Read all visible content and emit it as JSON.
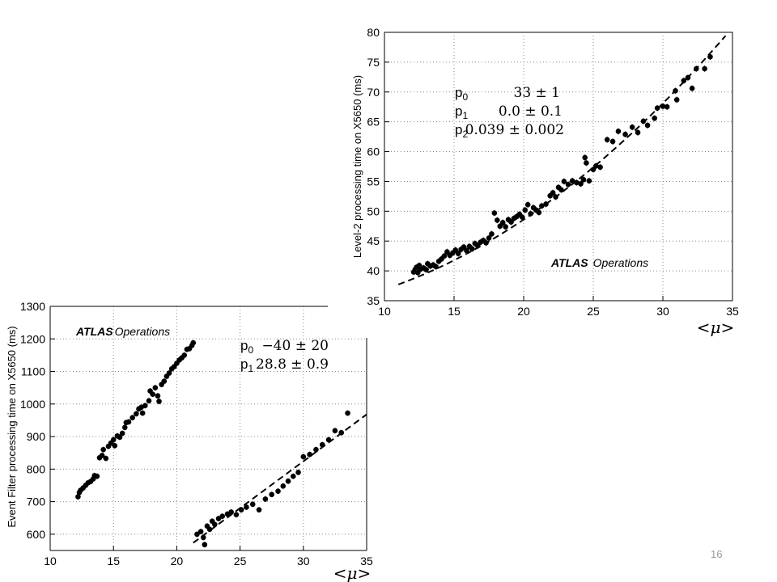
{
  "page_number": "16",
  "chart_data": [
    {
      "type": "scatter",
      "id": "l2",
      "xlabel": "<μ>",
      "ylabel": "Level-2 processing time on X5650 (ms)",
      "xlim": [
        10,
        35
      ],
      "ylim": [
        35,
        80
      ],
      "xticks": [
        10,
        15,
        20,
        25,
        30,
        35
      ],
      "yticks": [
        35,
        40,
        45,
        50,
        55,
        60,
        65,
        70,
        75,
        80
      ],
      "grid": true,
      "brand": "ATLAS",
      "brand_suffix": "Operations",
      "params": [
        {
          "name": "p",
          "sub": "0",
          "value": "33 ± 1"
        },
        {
          "name": "p",
          "sub": "1",
          "value": "0.0 ± 0.1"
        },
        {
          "name": "p",
          "sub": "2",
          "value": "0.039 ± 0.002"
        }
      ],
      "fit": {
        "type": "quadratic",
        "coeffs": [
          33,
          0.0,
          0.039
        ],
        "xrange": [
          11,
          34.5
        ]
      },
      "points": [
        [
          12.1,
          39.8
        ],
        [
          12.2,
          40.2
        ],
        [
          12.3,
          40.6
        ],
        [
          12.4,
          39.7
        ],
        [
          12.5,
          40.9
        ],
        [
          12.6,
          40.3
        ],
        [
          12.8,
          40.5
        ],
        [
          13.0,
          40.2
        ],
        [
          13.1,
          41.2
        ],
        [
          13.3,
          40.8
        ],
        [
          13.5,
          41.0
        ],
        [
          13.7,
          40.7
        ],
        [
          13.9,
          41.6
        ],
        [
          14.1,
          42.0
        ],
        [
          14.3,
          42.5
        ],
        [
          14.5,
          43.2
        ],
        [
          14.7,
          42.6
        ],
        [
          14.9,
          43.0
        ],
        [
          15.1,
          43.5
        ],
        [
          15.3,
          42.9
        ],
        [
          15.5,
          43.6
        ],
        [
          15.7,
          44.0
        ],
        [
          15.9,
          43.4
        ],
        [
          16.1,
          44.1
        ],
        [
          16.3,
          43.7
        ],
        [
          16.5,
          44.6
        ],
        [
          16.7,
          44.2
        ],
        [
          16.9,
          44.8
        ],
        [
          17.1,
          45.1
        ],
        [
          17.3,
          44.7
        ],
        [
          17.5,
          45.5
        ],
        [
          17.7,
          46.2
        ],
        [
          17.9,
          49.7
        ],
        [
          18.1,
          48.5
        ],
        [
          18.3,
          47.5
        ],
        [
          18.5,
          48.1
        ],
        [
          18.7,
          47.4
        ],
        [
          18.9,
          48.6
        ],
        [
          19.1,
          48.2
        ],
        [
          19.3,
          48.8
        ],
        [
          19.5,
          49.1
        ],
        [
          19.7,
          49.5
        ],
        [
          19.9,
          49.0
        ],
        [
          20.1,
          50.2
        ],
        [
          20.3,
          51.1
        ],
        [
          20.5,
          49.6
        ],
        [
          20.7,
          50.6
        ],
        [
          20.9,
          50.2
        ],
        [
          21.1,
          49.8
        ],
        [
          21.3,
          50.9
        ],
        [
          21.6,
          51.2
        ],
        [
          21.9,
          52.6
        ],
        [
          22.1,
          53.1
        ],
        [
          22.3,
          52.4
        ],
        [
          22.5,
          54.0
        ],
        [
          22.7,
          53.6
        ],
        [
          22.9,
          55.0
        ],
        [
          23.2,
          54.5
        ],
        [
          23.5,
          55.1
        ],
        [
          23.8,
          54.8
        ],
        [
          24.1,
          54.6
        ],
        [
          24.3,
          55.3
        ],
        [
          24.4,
          59.0
        ],
        [
          24.5,
          58.1
        ],
        [
          24.7,
          55.1
        ],
        [
          25.0,
          57.0
        ],
        [
          25.2,
          57.6
        ],
        [
          25.5,
          57.4
        ],
        [
          26.0,
          62.0
        ],
        [
          26.4,
          61.7
        ],
        [
          26.8,
          63.4
        ],
        [
          27.3,
          62.9
        ],
        [
          27.8,
          64.1
        ],
        [
          28.2,
          63.2
        ],
        [
          28.6,
          65.1
        ],
        [
          28.9,
          64.4
        ],
        [
          29.4,
          65.6
        ],
        [
          29.6,
          67.3
        ],
        [
          30.0,
          67.6
        ],
        [
          30.3,
          67.5
        ],
        [
          30.9,
          70.2
        ],
        [
          31.0,
          68.7
        ],
        [
          31.5,
          71.9
        ],
        [
          31.8,
          72.4
        ],
        [
          32.1,
          70.6
        ],
        [
          32.4,
          73.9
        ],
        [
          33.0,
          73.9
        ],
        [
          33.4,
          75.9
        ]
      ]
    },
    {
      "type": "scatter",
      "id": "ef",
      "xlabel": "<μ>",
      "ylabel": "Event Filter processing time on X5650 (ms)",
      "xlim": [
        10,
        35
      ],
      "ylim": [
        550,
        1300
      ],
      "xticks": [
        10,
        15,
        20,
        25,
        30,
        35
      ],
      "yticks": [
        600,
        700,
        800,
        900,
        1000,
        1100,
        1200,
        1300
      ],
      "grid": true,
      "brand": "ATLAS",
      "brand_suffix": "Operations",
      "params": [
        {
          "name": "p",
          "sub": "0",
          "value": "−40 ± 20"
        },
        {
          "name": "p",
          "sub": "1",
          "value": "28.8 ± 0.9"
        }
      ],
      "fit": {
        "type": "linear",
        "coeffs": [
          -40,
          28.8
        ],
        "xrange": [
          21.3,
          35
        ]
      },
      "points": [
        [
          12.2,
          715
        ],
        [
          12.3,
          728
        ],
        [
          12.4,
          735
        ],
        [
          12.6,
          742
        ],
        [
          12.8,
          750
        ],
        [
          13.0,
          758
        ],
        [
          13.2,
          762
        ],
        [
          13.4,
          770
        ],
        [
          13.5,
          780
        ],
        [
          13.7,
          778
        ],
        [
          13.9,
          835
        ],
        [
          14.1,
          842
        ],
        [
          14.2,
          860
        ],
        [
          14.4,
          833
        ],
        [
          14.6,
          870
        ],
        [
          14.8,
          880
        ],
        [
          15.0,
          890
        ],
        [
          15.1,
          872
        ],
        [
          15.3,
          902
        ],
        [
          15.5,
          898
        ],
        [
          15.7,
          910
        ],
        [
          15.9,
          928
        ],
        [
          16.0,
          943
        ],
        [
          16.2,
          945
        ],
        [
          16.5,
          958
        ],
        [
          16.8,
          970
        ],
        [
          17.0,
          985
        ],
        [
          17.2,
          990
        ],
        [
          17.3,
          972
        ],
        [
          17.5,
          995
        ],
        [
          17.8,
          1010
        ],
        [
          17.9,
          1040
        ],
        [
          18.1,
          1030
        ],
        [
          18.3,
          1050
        ],
        [
          18.5,
          1025
        ],
        [
          18.6,
          1008
        ],
        [
          18.8,
          1060
        ],
        [
          19.0,
          1070
        ],
        [
          19.2,
          1085
        ],
        [
          19.4,
          1095
        ],
        [
          19.6,
          1108
        ],
        [
          19.8,
          1115
        ],
        [
          20.0,
          1125
        ],
        [
          20.2,
          1135
        ],
        [
          20.4,
          1142
        ],
        [
          20.6,
          1150
        ],
        [
          20.8,
          1168
        ],
        [
          21.0,
          1170
        ],
        [
          21.2,
          1180
        ],
        [
          21.3,
          1188
        ],
        [
          21.6,
          600
        ],
        [
          21.9,
          608
        ],
        [
          22.1,
          590
        ],
        [
          22.2,
          568
        ],
        [
          22.4,
          625
        ],
        [
          22.6,
          615
        ],
        [
          22.8,
          640
        ],
        [
          23.0,
          630
        ],
        [
          23.3,
          648
        ],
        [
          23.6,
          655
        ],
        [
          24.0,
          662
        ],
        [
          24.3,
          668
        ],
        [
          24.7,
          660
        ],
        [
          25.1,
          675
        ],
        [
          25.5,
          683
        ],
        [
          26.0,
          692
        ],
        [
          26.5,
          675
        ],
        [
          27.0,
          708
        ],
        [
          27.5,
          722
        ],
        [
          28.0,
          732
        ],
        [
          28.4,
          748
        ],
        [
          28.8,
          763
        ],
        [
          29.2,
          778
        ],
        [
          29.6,
          790
        ],
        [
          30.0,
          838
        ],
        [
          30.5,
          845
        ],
        [
          31.0,
          860
        ],
        [
          31.5,
          875
        ],
        [
          32.0,
          890
        ],
        [
          32.5,
          918
        ],
        [
          33.0,
          912
        ],
        [
          33.5,
          972
        ]
      ]
    }
  ]
}
